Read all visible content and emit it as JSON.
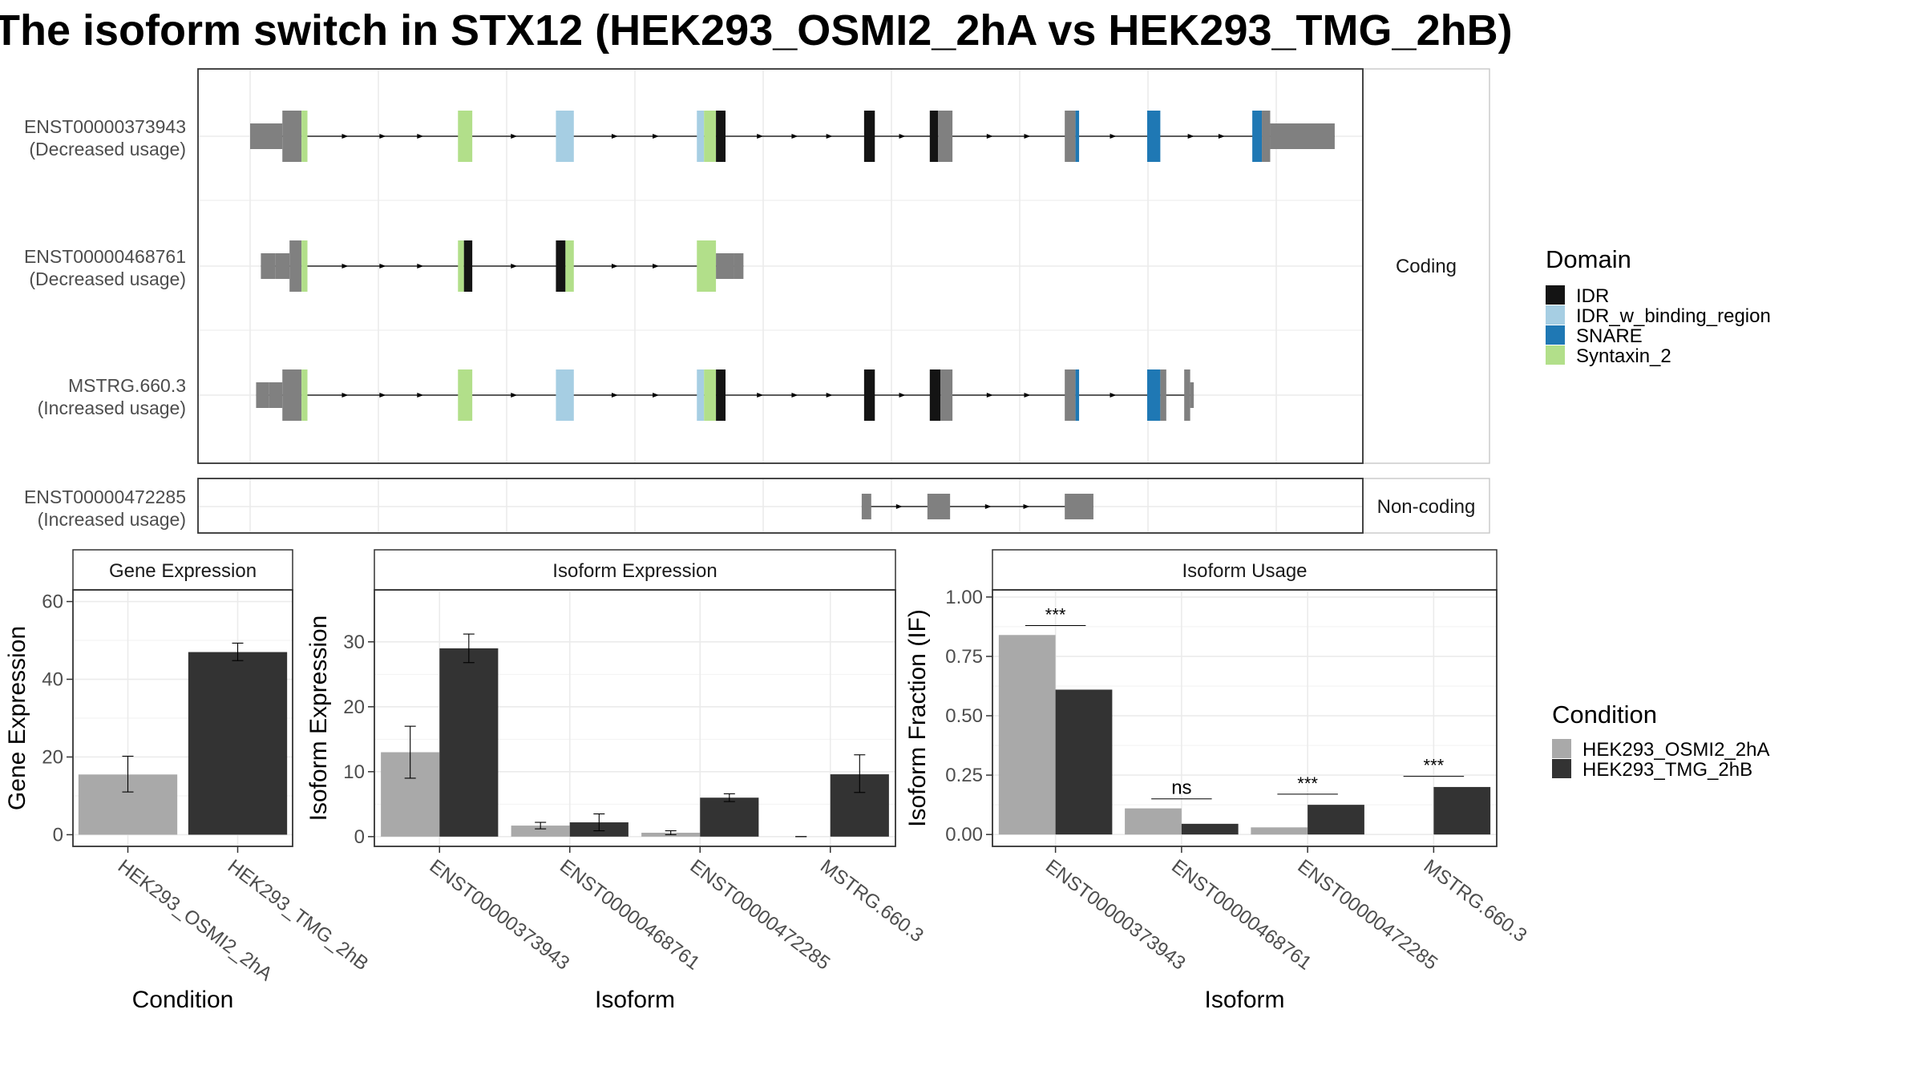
{
  "title": "The isoform switch in STX12 (HEK293_OSMI2_2hA vs HEK293_TMG_2hB)",
  "chart_data": [
    {
      "type": "gene-structure",
      "facets": [
        "Coding",
        "Non-coding"
      ],
      "domain_colors": {
        "IDR": "#141414",
        "IDR_w_binding_region": "#a6cee3",
        "SNARE": "#1f78b4",
        "Syntaxin_2": "#b2df8a",
        "none": "#808080"
      },
      "transcripts": [
        {
          "id": "ENST00000373943",
          "usage": "(Decreased usage)",
          "facet": "Coding",
          "exons": [
            {
              "s": 0.0,
              "e": 2.7,
              "utr": true
            },
            {
              "s": 2.7,
              "e": 4.3,
              "d": "none"
            },
            {
              "s": 4.3,
              "e": 4.8,
              "d": "Syntaxin_2"
            },
            {
              "s": 17.4,
              "e": 18.6,
              "d": "Syntaxin_2"
            },
            {
              "s": 25.6,
              "e": 27.1,
              "d": "IDR_w_binding_region"
            },
            {
              "s": 37.4,
              "e": 38.0,
              "d": "IDR_w_binding_region"
            },
            {
              "s": 38.0,
              "e": 39.0,
              "d": "Syntaxin_2"
            },
            {
              "s": 39.0,
              "e": 39.8,
              "d": "IDR"
            },
            {
              "s": 51.4,
              "e": 52.3,
              "d": "IDR"
            },
            {
              "s": 56.9,
              "e": 57.6,
              "d": "IDR"
            },
            {
              "s": 57.6,
              "e": 58.8,
              "d": "none"
            },
            {
              "s": 68.2,
              "e": 69.1,
              "d": "none"
            },
            {
              "s": 69.1,
              "e": 69.4,
              "d": "SNARE"
            },
            {
              "s": 75.1,
              "e": 76.2,
              "d": "SNARE"
            },
            {
              "s": 83.9,
              "e": 84.7,
              "d": "SNARE"
            },
            {
              "s": 84.7,
              "e": 85.4,
              "d": "none"
            },
            {
              "s": 85.4,
              "e": 90.8,
              "utr": true
            }
          ]
        },
        {
          "id": "ENST00000468761",
          "usage": "(Decreased usage)",
          "facet": "Coding",
          "exons": [
            {
              "s": 0.9,
              "e": 2.1,
              "utr": true
            },
            {
              "s": 2.1,
              "e": 3.3,
              "utr": true
            },
            {
              "s": 3.3,
              "e": 4.3,
              "d": "none"
            },
            {
              "s": 4.3,
              "e": 4.8,
              "d": "Syntaxin_2"
            },
            {
              "s": 17.4,
              "e": 17.9,
              "d": "Syntaxin_2"
            },
            {
              "s": 17.9,
              "e": 18.6,
              "d": "IDR"
            },
            {
              "s": 25.6,
              "e": 26.4,
              "d": "IDR"
            },
            {
              "s": 26.4,
              "e": 27.1,
              "d": "Syntaxin_2"
            },
            {
              "s": 37.4,
              "e": 39.0,
              "d": "Syntaxin_2"
            },
            {
              "s": 39.0,
              "e": 40.5,
              "utr": true
            },
            {
              "s": 40.5,
              "e": 41.3,
              "utr": true
            }
          ]
        },
        {
          "id": "MSTRG.660.3",
          "usage": "(Increased usage)",
          "facet": "Coding",
          "exons": [
            {
              "s": 0.5,
              "e": 1.6,
              "utr": true
            },
            {
              "s": 1.6,
              "e": 2.7,
              "utr": true
            },
            {
              "s": 2.7,
              "e": 4.3,
              "d": "none"
            },
            {
              "s": 4.3,
              "e": 4.8,
              "d": "Syntaxin_2"
            },
            {
              "s": 17.4,
              "e": 18.6,
              "d": "Syntaxin_2"
            },
            {
              "s": 25.6,
              "e": 27.1,
              "d": "IDR_w_binding_region"
            },
            {
              "s": 37.4,
              "e": 38.0,
              "d": "IDR_w_binding_region"
            },
            {
              "s": 38.0,
              "e": 39.0,
              "d": "Syntaxin_2"
            },
            {
              "s": 39.0,
              "e": 39.8,
              "d": "IDR"
            },
            {
              "s": 51.4,
              "e": 52.3,
              "d": "IDR"
            },
            {
              "s": 56.9,
              "e": 57.8,
              "d": "IDR"
            },
            {
              "s": 57.8,
              "e": 58.8,
              "d": "none"
            },
            {
              "s": 68.2,
              "e": 69.1,
              "d": "none"
            },
            {
              "s": 69.1,
              "e": 69.4,
              "d": "SNARE"
            },
            {
              "s": 75.1,
              "e": 76.2,
              "d": "SNARE"
            },
            {
              "s": 76.2,
              "e": 76.7,
              "d": "none"
            },
            {
              "s": 78.2,
              "e": 78.7,
              "d": "none"
            },
            {
              "s": 78.7,
              "e": 79.0,
              "utr": true
            }
          ]
        },
        {
          "id": "ENST00000472285",
          "usage": "(Increased usage)",
          "facet": "Non-coding",
          "exons": [
            {
              "s": 51.2,
              "e": 52.0,
              "d": "none"
            },
            {
              "s": 56.7,
              "e": 58.6,
              "d": "none"
            },
            {
              "s": 68.2,
              "e": 70.6,
              "d": "none"
            }
          ]
        }
      ],
      "legend": {
        "title": "Domain",
        "items": [
          "IDR",
          "IDR_w_binding_region",
          "SNARE",
          "Syntaxin_2"
        ]
      }
    },
    {
      "type": "bar",
      "title": "Gene Expression",
      "xlabel": "Condition",
      "ylabel": "Gene Expression",
      "ylim": [
        -3,
        63
      ],
      "yticks": [
        0,
        20,
        40,
        60
      ],
      "categories": [
        "HEK293_OSMI2_2hA",
        "HEK293_TMG_2hB"
      ],
      "values": [
        15.5,
        47.0
      ],
      "err_low": [
        11.0,
        44.8
      ],
      "err_high": [
        20.2,
        49.3
      ]
    },
    {
      "type": "bar",
      "title": "Isoform Expression",
      "xlabel": "Isoform",
      "ylabel": "Isoform Expression",
      "ylim": [
        -1.5,
        38
      ],
      "yticks": [
        0,
        10,
        20,
        30
      ],
      "categories": [
        "ENST00000373943",
        "ENST00000468761",
        "ENST00000472285",
        "MSTRG.660.3"
      ],
      "series": [
        {
          "name": "HEK293_OSMI2_2hA",
          "values": [
            13.0,
            1.7,
            0.6,
            0.0
          ],
          "err_low": [
            9.0,
            1.2,
            0.3,
            0.0
          ],
          "err_high": [
            17.0,
            2.2,
            0.9,
            0.0
          ]
        },
        {
          "name": "HEK293_TMG_2hB",
          "values": [
            29.0,
            2.2,
            6.0,
            9.6
          ],
          "err_low": [
            26.8,
            0.9,
            5.4,
            6.8
          ],
          "err_high": [
            31.2,
            3.5,
            6.6,
            12.6
          ]
        }
      ]
    },
    {
      "type": "bar",
      "title": "Isoform Usage",
      "xlabel": "Isoform",
      "ylabel": "Isoform Fraction (IF)",
      "ylim": [
        -0.05,
        1.03
      ],
      "yticks": [
        "0.00",
        "0.25",
        "0.50",
        "0.75",
        "1.00"
      ],
      "categories": [
        "ENST00000373943",
        "ENST00000468761",
        "ENST00000472285",
        "MSTRG.660.3"
      ],
      "series": [
        {
          "name": "HEK293_OSMI2_2hA",
          "values": [
            0.84,
            0.11,
            0.03,
            0.0
          ]
        },
        {
          "name": "HEK293_TMG_2hB",
          "values": [
            0.61,
            0.045,
            0.125,
            0.2
          ]
        }
      ],
      "significance": [
        {
          "label": "***",
          "y": 0.88
        },
        {
          "label": "ns",
          "y": 0.15
        },
        {
          "label": "***",
          "y": 0.17
        },
        {
          "label": "***",
          "y": 0.245
        }
      ]
    }
  ],
  "condition_legend": {
    "title": "Condition",
    "items": [
      {
        "name": "HEK293_OSMI2_2hA",
        "color": "#a9a9a9"
      },
      {
        "name": "HEK293_TMG_2hB",
        "color": "#333333"
      }
    ]
  }
}
